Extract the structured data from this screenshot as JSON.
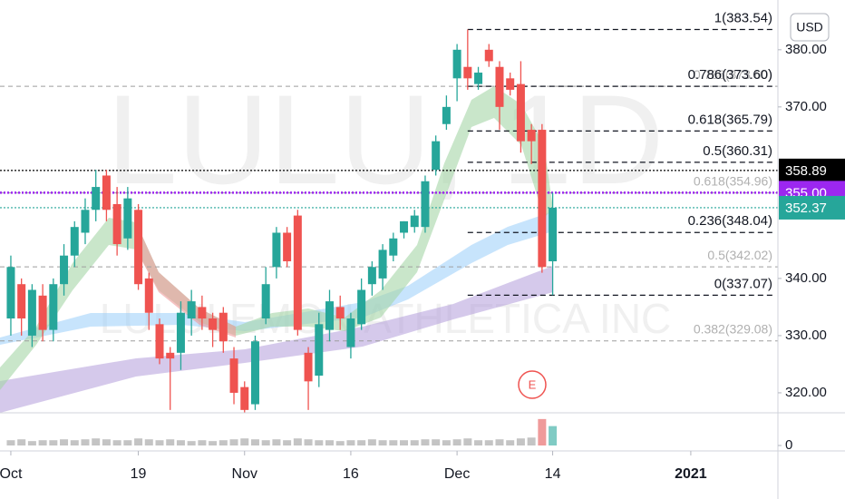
{
  "chart_data": {
    "type": "candlestick",
    "watermark": "LULU, 1D",
    "subtitle": "LULULEMON ATHLETICA INC",
    "currency": "USD",
    "earnings_marker": "E",
    "up_color": "#26a69a",
    "down_color": "#ef5350",
    "open": [
      333,
      339,
      330,
      337,
      331,
      339,
      344,
      348,
      352,
      358,
      353,
      347,
      352,
      340,
      332,
      327,
      327,
      333,
      335,
      333,
      334,
      326,
      321,
      318,
      333,
      342,
      348,
      351,
      327,
      323,
      331,
      335,
      328,
      332,
      339,
      340,
      344,
      348,
      349,
      349,
      359,
      367,
      375,
      377,
      374,
      380,
      377,
      375,
      374,
      366,
      366,
      343
    ],
    "high": [
      344,
      340,
      339,
      339,
      340,
      346,
      350,
      354,
      359,
      359,
      356,
      356,
      353,
      341,
      333,
      328,
      336,
      338,
      337,
      334,
      335,
      328,
      322,
      330,
      342,
      349,
      349,
      352,
      328,
      334,
      338,
      337,
      334,
      340,
      343,
      346,
      348,
      350,
      352,
      358,
      365,
      372,
      381,
      383.54,
      377,
      381,
      378,
      376,
      378,
      367,
      367,
      355
    ],
    "low": [
      330,
      330,
      328,
      329,
      329,
      337,
      342,
      346,
      350,
      350,
      344,
      345,
      338,
      331,
      325,
      317,
      324,
      330,
      331,
      328,
      327,
      318,
      316.5,
      317,
      332,
      340,
      342,
      330,
      317,
      321,
      329,
      331,
      326,
      331,
      337,
      338,
      343,
      347,
      348,
      348,
      358,
      366,
      371,
      373,
      373,
      377,
      366,
      372,
      362,
      360,
      341,
      337.07
    ],
    "close": [
      342,
      333,
      338,
      331,
      339,
      344,
      349,
      352,
      356,
      352,
      346,
      354,
      339,
      334,
      326,
      326,
      334,
      336,
      333,
      331,
      329,
      320,
      317,
      329,
      339,
      348,
      343,
      331,
      322,
      332,
      336,
      333,
      333,
      338,
      342,
      345,
      347,
      350,
      351,
      357,
      364,
      370,
      380,
      375,
      376,
      378,
      370,
      373,
      364,
      364,
      342,
      352.37
    ],
    "volume": [
      6,
      7,
      5,
      6,
      6,
      7,
      6,
      7,
      8,
      7,
      6,
      6,
      8,
      7,
      6,
      7,
      6,
      5,
      6,
      5,
      6,
      7,
      8,
      7,
      6,
      7,
      6,
      8,
      7,
      6,
      6,
      5,
      6,
      6,
      7,
      6,
      6,
      6,
      6,
      7,
      7,
      6,
      7,
      8,
      6,
      6,
      7,
      6,
      8,
      9,
      30,
      22
    ],
    "volume_ylim": [
      -1,
      35
    ],
    "volume_yticks": [
      0
    ],
    "xlim": [
      -1.02,
      72.2
    ],
    "xticks": [
      {
        "value": 0,
        "label": "Oct"
      },
      {
        "value": 12,
        "label": "19"
      },
      {
        "value": 22,
        "label": "Nov"
      },
      {
        "value": 32,
        "label": "16"
      },
      {
        "value": 42,
        "label": "Dec"
      },
      {
        "value": 51,
        "label": "14"
      },
      {
        "value": 64,
        "label": "2021"
      }
    ],
    "ylim": [
      316.5,
      388.7
    ],
    "yticks": [
      {
        "value": 320,
        "label": "320.00"
      },
      {
        "value": 330,
        "label": "330.00"
      },
      {
        "value": 340,
        "label": "340.00"
      },
      {
        "value": 370,
        "label": "370.00"
      },
      {
        "value": 380,
        "label": "380.00"
      }
    ],
    "fib_levels": [
      {
        "value": 383.54,
        "label": "1(383.54)"
      },
      {
        "value": 373.6,
        "label": "0.786(373.60)"
      },
      {
        "value": 365.79,
        "label": "0.618(365.79)"
      },
      {
        "value": 360.31,
        "label": "0.5(360.31)"
      },
      {
        "value": 348.04,
        "label": "0.236(348.04)"
      },
      {
        "value": 337.07,
        "label": "0(337.07)"
      }
    ],
    "fib_levels_old": [
      {
        "value": 373.6,
        "label": "0.786(373.60)"
      },
      {
        "value": 354.96,
        "label": "0.618(354.96)"
      },
      {
        "value": 342.02,
        "label": "0.5(342.02)"
      },
      {
        "value": 329.08,
        "label": "0.382(329.08)"
      }
    ],
    "price_tags": [
      {
        "value": 358.89,
        "label": "358.89",
        "color": "#000000"
      },
      {
        "value": 355.0,
        "label": "355.00",
        "color": "#9c27f0"
      },
      {
        "value": 352.37,
        "label": "352.37",
        "color": "#26a69a"
      }
    ]
  }
}
